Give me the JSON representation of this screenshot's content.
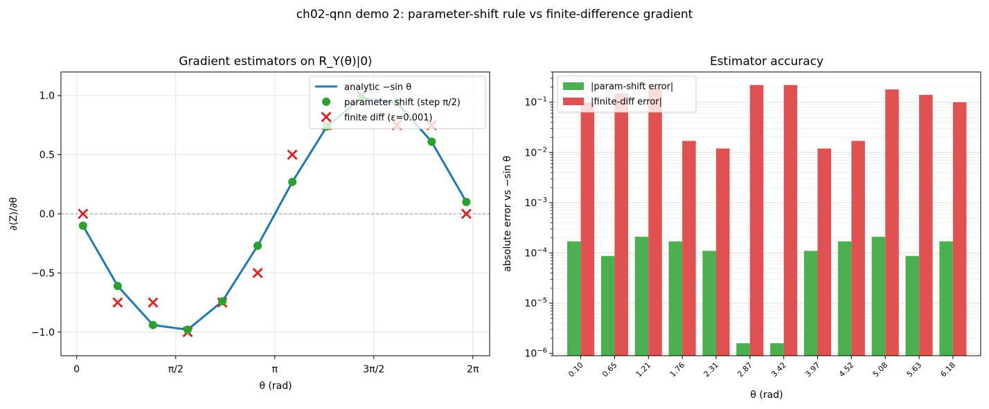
{
  "suptitle": "ch02-qnn demo 2: parameter-shift rule vs finite-difference gradient",
  "colors": {
    "analytic": "#1f77b4",
    "param_shift": "#2ca02c",
    "finite_diff": "#d62728",
    "bar_green": "#4caf50",
    "bar_red": "#e05252"
  },
  "chart_data": [
    {
      "type": "line",
      "title": "Gradient estimators on R_Y(θ)|0⟩",
      "xlabel": "θ (rad)",
      "ylabel": "∂⟨Z⟩/∂θ",
      "xlim": [
        -0.25,
        6.55
      ],
      "ylim": [
        -1.2,
        1.2
      ],
      "x_ticks": [
        {
          "value": 0,
          "label": "0"
        },
        {
          "value": 1.5708,
          "label": "π/2"
        },
        {
          "value": 3.1416,
          "label": "π"
        },
        {
          "value": 4.7124,
          "label": "3π/2"
        },
        {
          "value": 6.2832,
          "label": "2π"
        }
      ],
      "y_ticks": [
        {
          "value": 1.0,
          "label": "1.0"
        },
        {
          "value": 0.5,
          "label": "0.5"
        },
        {
          "value": 0.0,
          "label": "0.0"
        },
        {
          "value": -0.5,
          "label": "−0.5"
        },
        {
          "value": -1.0,
          "label": "−1.0"
        }
      ],
      "grid": true,
      "legend_position": "top-right",
      "x": [
        0.1,
        0.65,
        1.21,
        1.76,
        2.31,
        2.87,
        3.42,
        3.97,
        4.52,
        5.08,
        5.63,
        6.18
      ],
      "series": [
        {
          "name": "analytic −sin θ",
          "kind": "line",
          "values": [
            -0.1,
            -0.61,
            -0.94,
            -0.98,
            -0.74,
            -0.27,
            0.27,
            0.74,
            0.98,
            0.94,
            0.61,
            0.1
          ]
        },
        {
          "name": "parameter shift (step π/2)",
          "kind": "scatter-circle",
          "values": [
            -0.1,
            -0.61,
            -0.94,
            -0.98,
            -0.74,
            -0.27,
            0.27,
            0.74,
            0.98,
            0.94,
            0.61,
            0.1
          ]
        },
        {
          "name": "finite diff (ε=0.001)",
          "kind": "scatter-x",
          "values": [
            0.0,
            -0.75,
            -0.75,
            -1.0,
            -0.75,
            -0.5,
            0.5,
            0.75,
            1.0,
            0.75,
            0.75,
            0.0
          ]
        }
      ],
      "reference_line": 0
    },
    {
      "type": "bar",
      "title": "Estimator accuracy",
      "xlabel": "θ (rad)",
      "ylabel": "absolute error vs −sin θ",
      "yscale": "log",
      "ylim": [
        9e-07,
        0.4
      ],
      "y_ticks": [
        {
          "exp": -6,
          "label": "10",
          "sup": "−6"
        },
        {
          "exp": -5,
          "label": "10",
          "sup": "−5"
        },
        {
          "exp": -4,
          "label": "10",
          "sup": "−4"
        },
        {
          "exp": -3,
          "label": "10",
          "sup": "−3"
        },
        {
          "exp": -2,
          "label": "10",
          "sup": "−2"
        },
        {
          "exp": -1,
          "label": "10",
          "sup": "−1"
        }
      ],
      "categories": [
        "0.10",
        "0.65",
        "1.21",
        "1.76",
        "2.31",
        "2.87",
        "3.42",
        "3.97",
        "4.52",
        "5.08",
        "5.63",
        "6.18"
      ],
      "grid": true,
      "legend_position": "top-left",
      "series": [
        {
          "name": "|param-shift error|",
          "values": [
            0.00017,
            8.7e-05,
            0.00021,
            0.00017,
            0.00011,
            1.6e-06,
            1.6e-06,
            0.00011,
            0.00017,
            0.00021,
            8.7e-05,
            0.00017
          ]
        },
        {
          "name": "|finite-diff error|",
          "values": [
            0.1,
            0.15,
            0.19,
            0.017,
            0.012,
            0.22,
            0.22,
            0.012,
            0.017,
            0.18,
            0.14,
            0.1
          ]
        }
      ]
    }
  ]
}
